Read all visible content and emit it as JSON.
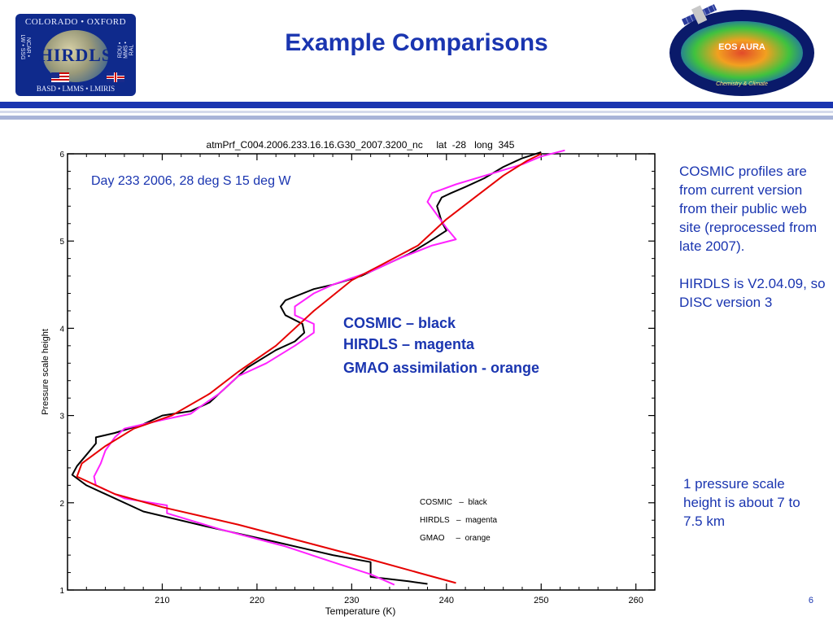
{
  "header": {
    "title": "Example Comparisons",
    "left_logo": {
      "top_text": "COLORADO • OXFORD",
      "wordmark": "HIRDLS",
      "bottom_text": "BASD • LMMS • LMIRIS",
      "left_text": "NCAR • LW • SSG",
      "right_text": "RDU • MMS • RAL"
    },
    "right_logo": {
      "name": "EOS AURA",
      "tagline": "Chemistry & Climate"
    }
  },
  "colors": {
    "title_blue": "#1a35b0",
    "cosmic": "#000000",
    "hirdls": "#ff22ff",
    "gmao": "#e60000"
  },
  "chart_data": {
    "type": "line",
    "title": "atmPrf_C004.2006.233.16.16.G30_2007.3200_nc     lat  -28   long  345",
    "xlabel": "Temperature (K)",
    "ylabel": "Pressure scale height",
    "xlim": [
      200,
      262
    ],
    "ylim": [
      1,
      6
    ],
    "xticks": [
      210,
      220,
      230,
      240,
      250,
      260
    ],
    "yticks": [
      1,
      2,
      3,
      4,
      5,
      6
    ],
    "annotation": "Day 233 2006, 28 deg S 15 deg W",
    "inline_legend": [
      "COSMIC – black",
      "HIRDLS – magenta",
      "GMAO assimilation - orange"
    ],
    "legend": [
      "COSMIC   –  black",
      "HIRDLS   –  magenta",
      "GMAO     –  orange"
    ],
    "series": [
      {
        "name": "COSMIC",
        "color": "#000000",
        "points": [
          [
            238,
            1.07
          ],
          [
            236,
            1.1
          ],
          [
            232,
            1.15
          ],
          [
            232,
            1.32
          ],
          [
            228,
            1.4
          ],
          [
            222,
            1.55
          ],
          [
            215,
            1.72
          ],
          [
            208,
            1.9
          ],
          [
            202,
            2.2
          ],
          [
            200.5,
            2.32
          ],
          [
            201,
            2.42
          ],
          [
            202,
            2.55
          ],
          [
            203,
            2.68
          ],
          [
            203,
            2.75
          ],
          [
            205,
            2.8
          ],
          [
            208,
            2.9
          ],
          [
            210,
            3.0
          ],
          [
            213,
            3.05
          ],
          [
            215,
            3.15
          ],
          [
            216,
            3.25
          ],
          [
            217,
            3.35
          ],
          [
            218,
            3.45
          ],
          [
            219,
            3.55
          ],
          [
            222,
            3.75
          ],
          [
            224,
            3.85
          ],
          [
            225,
            3.95
          ],
          [
            224.8,
            4.05
          ],
          [
            223,
            4.15
          ],
          [
            222.5,
            4.25
          ],
          [
            223,
            4.32
          ],
          [
            226,
            4.45
          ],
          [
            228,
            4.5
          ],
          [
            231,
            4.6
          ],
          [
            234,
            4.75
          ],
          [
            236,
            4.85
          ],
          [
            238,
            4.98
          ],
          [
            240,
            5.12
          ],
          [
            239.5,
            5.22
          ],
          [
            239,
            5.4
          ],
          [
            239.5,
            5.5
          ],
          [
            240.5,
            5.55
          ],
          [
            242,
            5.62
          ],
          [
            244,
            5.72
          ],
          [
            246,
            5.85
          ],
          [
            248,
            5.95
          ],
          [
            250,
            6.02
          ]
        ]
      },
      {
        "name": "HIRDLS",
        "color": "#ff22ff",
        "points": [
          [
            234.5,
            1.06
          ],
          [
            232,
            1.18
          ],
          [
            228,
            1.32
          ],
          [
            223,
            1.5
          ],
          [
            216,
            1.7
          ],
          [
            210.5,
            1.88
          ],
          [
            210.5,
            1.97
          ],
          [
            206,
            2.05
          ],
          [
            203,
            2.2
          ],
          [
            202.8,
            2.3
          ],
          [
            203.5,
            2.45
          ],
          [
            204,
            2.6
          ],
          [
            205,
            2.75
          ],
          [
            206,
            2.85
          ],
          [
            210,
            2.95
          ],
          [
            213,
            3.02
          ],
          [
            214,
            3.1
          ],
          [
            216,
            3.25
          ],
          [
            218,
            3.45
          ],
          [
            221,
            3.6
          ],
          [
            224,
            3.8
          ],
          [
            226,
            3.95
          ],
          [
            226,
            4.05
          ],
          [
            224,
            4.15
          ],
          [
            224,
            4.25
          ],
          [
            226,
            4.4
          ],
          [
            228,
            4.5
          ],
          [
            232,
            4.65
          ],
          [
            235,
            4.8
          ],
          [
            238.5,
            4.95
          ],
          [
            241,
            5.02
          ],
          [
            240,
            5.15
          ],
          [
            239,
            5.3
          ],
          [
            238,
            5.45
          ],
          [
            238.5,
            5.55
          ],
          [
            241,
            5.65
          ],
          [
            245,
            5.78
          ],
          [
            248,
            5.88
          ],
          [
            250,
            5.97
          ],
          [
            252.5,
            6.04
          ]
        ]
      },
      {
        "name": "GMAO",
        "color": "#e60000",
        "points": [
          [
            241,
            1.08
          ],
          [
            237,
            1.2
          ],
          [
            232,
            1.35
          ],
          [
            225,
            1.55
          ],
          [
            218,
            1.75
          ],
          [
            210,
            1.95
          ],
          [
            205,
            2.1
          ],
          [
            201,
            2.3
          ],
          [
            201.5,
            2.45
          ],
          [
            204,
            2.65
          ],
          [
            207,
            2.85
          ],
          [
            211,
            3.0
          ],
          [
            215,
            3.25
          ],
          [
            218,
            3.5
          ],
          [
            222,
            3.8
          ],
          [
            226,
            4.2
          ],
          [
            230,
            4.55
          ],
          [
            233,
            4.72
          ],
          [
            237,
            4.95
          ],
          [
            240,
            5.25
          ],
          [
            243,
            5.5
          ],
          [
            246,
            5.75
          ],
          [
            248.5,
            5.92
          ],
          [
            250,
            6.0
          ]
        ]
      }
    ]
  },
  "notes": {
    "cosmic_note": "COSMIC profiles are from current version from their public web site (reprocessed from late 2007).",
    "hirdls_note": "HIRDLS is V2.04.09, so DISC version 3",
    "scale_note": "1 pressure scale height is about 7 to 7.5 km"
  },
  "footer": {
    "page_number": "6"
  }
}
